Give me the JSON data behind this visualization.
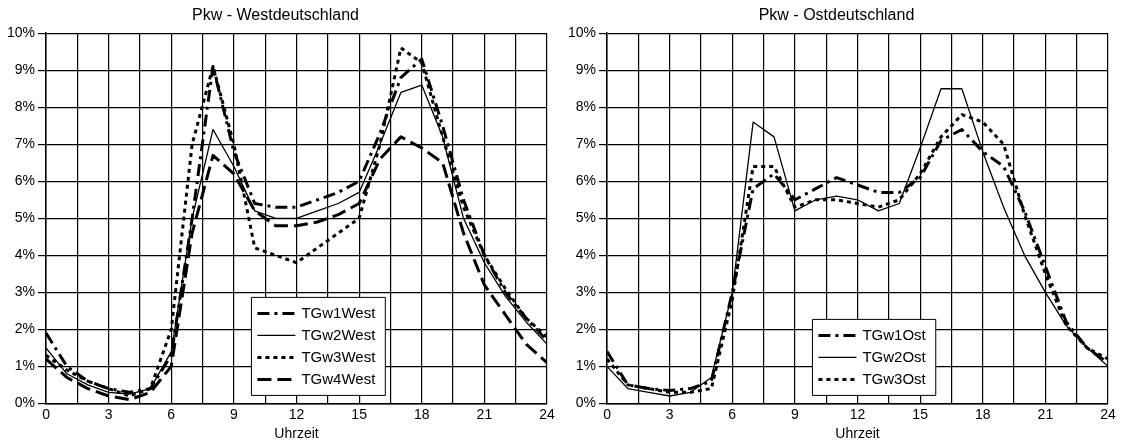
{
  "chart_data": [
    {
      "type": "line",
      "title": "Pkw - Westdeutschland",
      "xlabel": "Uhrzeit",
      "x": [
        0,
        1,
        2,
        3,
        4,
        5,
        6,
        7,
        8,
        9,
        10,
        11,
        12,
        13,
        14,
        15,
        16,
        17,
        18,
        19,
        20,
        21,
        22,
        23,
        24
      ],
      "series": [
        {
          "name": "TGw1West",
          "color": "#000000",
          "line_style": "dashdot",
          "values": [
            1.9,
            1.0,
            0.6,
            0.4,
            0.3,
            0.4,
            1.3,
            5.0,
            9.1,
            6.8,
            5.4,
            5.3,
            5.3,
            5.5,
            5.7,
            6.0,
            7.3,
            8.8,
            9.3,
            7.5,
            5.5,
            4.0,
            3.0,
            2.3,
            1.7
          ]
        },
        {
          "name": "TGw2West",
          "color": "#000000",
          "line_style": "solid",
          "values": [
            1.5,
            0.8,
            0.5,
            0.3,
            0.25,
            0.4,
            1.4,
            5.0,
            7.4,
            6.4,
            5.2,
            5.0,
            5.0,
            5.2,
            5.4,
            5.7,
            7.0,
            8.4,
            8.6,
            7.2,
            5.0,
            3.8,
            2.9,
            2.2,
            1.6
          ]
        },
        {
          "name": "TGw3West",
          "color": "#000000",
          "line_style": "dotted",
          "values": [
            1.3,
            0.9,
            0.6,
            0.4,
            0.2,
            0.4,
            2.0,
            7.0,
            9.1,
            7.0,
            4.2,
            4.0,
            3.8,
            4.2,
            4.6,
            5.0,
            7.0,
            9.6,
            9.2,
            7.2,
            5.3,
            4.0,
            3.1,
            2.3,
            1.8
          ]
        },
        {
          "name": "TGw4West",
          "color": "#000000",
          "line_style": "dashed",
          "values": [
            1.2,
            0.7,
            0.4,
            0.2,
            0.1,
            0.3,
            1.0,
            4.6,
            6.7,
            6.2,
            5.2,
            4.8,
            4.8,
            4.9,
            5.1,
            5.4,
            6.6,
            7.2,
            6.9,
            6.5,
            4.6,
            3.2,
            2.4,
            1.6,
            1.1
          ]
        }
      ],
      "xlim": [
        0,
        24
      ],
      "xticks": [
        0,
        {
          "value": 1.5,
          "label": null
        },
        3,
        {
          "value": 4.5,
          "label": null
        },
        6,
        {
          "value": 7.5,
          "label": null
        },
        9,
        {
          "value": 10.5,
          "label": null
        },
        12,
        {
          "value": 13.5,
          "label": null
        },
        15,
        {
          "value": 16.5,
          "label": null
        },
        18,
        {
          "value": 19.5,
          "label": null
        },
        21,
        {
          "value": 22.5,
          "label": null
        },
        24
      ],
      "ylim": [
        0,
        10
      ],
      "yticks": [
        {
          "value": 0,
          "label": "0%"
        },
        {
          "value": 1,
          "label": "1%"
        },
        {
          "value": 2,
          "label": "2%"
        },
        {
          "value": 3,
          "label": "3%"
        },
        {
          "value": 4,
          "label": "4%"
        },
        {
          "value": 5,
          "label": "5%"
        },
        {
          "value": 6,
          "label": "6%"
        },
        {
          "value": 7,
          "label": "7%"
        },
        {
          "value": 8,
          "label": "8%"
        },
        {
          "value": 9,
          "label": "9%"
        },
        {
          "value": 10,
          "label": "10%"
        }
      ],
      "grid": true,
      "legend": "bottom",
      "marker": "none"
    },
    {
      "type": "line",
      "title": "Pkw - Ostdeutschland",
      "xlabel": "Uhrzeit",
      "x": [
        0,
        1,
        2,
        3,
        4,
        5,
        6,
        7,
        8,
        9,
        10,
        11,
        12,
        13,
        14,
        15,
        16,
        17,
        18,
        19,
        20,
        21,
        22,
        23,
        24
      ],
      "series": [
        {
          "name": "TGw1Ost",
          "color": "#000000",
          "line_style": "dashdot",
          "values": [
            1.4,
            0.5,
            0.4,
            0.35,
            0.4,
            0.6,
            3.0,
            5.8,
            6.2,
            5.5,
            5.8,
            6.1,
            5.9,
            5.7,
            5.7,
            6.1,
            7.1,
            7.4,
            6.8,
            6.4,
            5.2,
            3.7,
            2.2,
            1.5,
            1.1
          ]
        },
        {
          "name": "TGw2Ost",
          "color": "#000000",
          "line_style": "solid",
          "values": [
            1.0,
            0.4,
            0.3,
            0.2,
            0.3,
            0.7,
            3.0,
            7.6,
            7.2,
            5.2,
            5.5,
            5.6,
            5.5,
            5.2,
            5.4,
            6.9,
            8.5,
            8.5,
            6.8,
            5.3,
            4.0,
            3.0,
            2.1,
            1.5,
            1.0
          ]
        },
        {
          "name": "TGw3Ost",
          "color": "#000000",
          "line_style": "dotted",
          "values": [
            1.2,
            0.5,
            0.4,
            0.3,
            0.3,
            0.4,
            2.8,
            6.4,
            6.4,
            5.3,
            5.5,
            5.5,
            5.4,
            5.3,
            5.5,
            6.2,
            7.2,
            7.8,
            7.6,
            7.0,
            5.1,
            3.5,
            2.1,
            1.5,
            1.2
          ]
        }
      ],
      "xlim": [
        0,
        24
      ],
      "xticks": [
        0,
        {
          "value": 1.5,
          "label": null
        },
        3,
        {
          "value": 4.5,
          "label": null
        },
        6,
        {
          "value": 7.5,
          "label": null
        },
        9,
        {
          "value": 10.5,
          "label": null
        },
        12,
        {
          "value": 13.5,
          "label": null
        },
        15,
        {
          "value": 16.5,
          "label": null
        },
        18,
        {
          "value": 19.5,
          "label": null
        },
        21,
        {
          "value": 22.5,
          "label": null
        },
        24
      ],
      "ylim": [
        0,
        10
      ],
      "yticks": [
        {
          "value": 0,
          "label": "0%"
        },
        {
          "value": 1,
          "label": "1%"
        },
        {
          "value": 2,
          "label": "2%"
        },
        {
          "value": 3,
          "label": "3%"
        },
        {
          "value": 4,
          "label": "4%"
        },
        {
          "value": 5,
          "label": "5%"
        },
        {
          "value": 6,
          "label": "6%"
        },
        {
          "value": 7,
          "label": "7%"
        },
        {
          "value": 8,
          "label": "8%"
        },
        {
          "value": 9,
          "label": "9%"
        },
        {
          "value": 10,
          "label": "10%"
        }
      ],
      "grid": true,
      "legend": "bottom",
      "marker": "none"
    }
  ]
}
